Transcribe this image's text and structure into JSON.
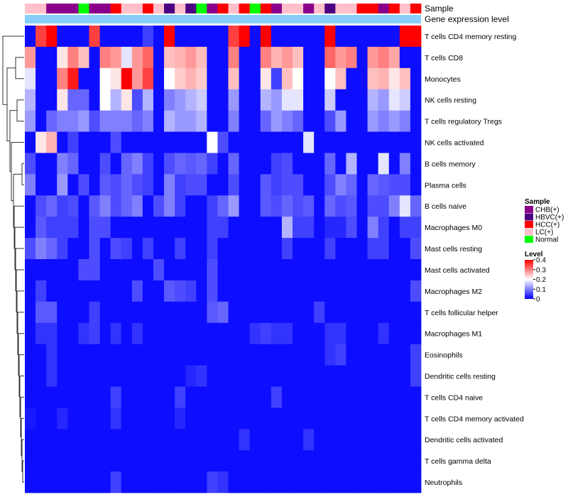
{
  "chart_data": {
    "type": "heatmap",
    "title": "",
    "annotations": [
      {
        "name": "Sample",
        "label": "Sample"
      },
      {
        "name": "Gene expression level",
        "label": "Gene expression level",
        "color": "#87CEFA"
      }
    ],
    "sample_colors": {
      "CHB(+)": "#8B008B",
      "HBVC(+)": "#4B0082",
      "HCC(+)": "#FF0000",
      "LC(+)": "#FFC0CB",
      "Normal": "#00FF00"
    },
    "columns_sample": [
      "LC(+)",
      "LC(+)",
      "CHB(+)",
      "CHB(+)",
      "CHB(+)",
      "Normal",
      "CHB(+)",
      "CHB(+)",
      "HCC(+)",
      "LC(+)",
      "LC(+)",
      "HCC(+)",
      "LC(+)",
      "HBVC(+)",
      "LC(+)",
      "HBVC(+)",
      "Normal",
      "CHB(+)",
      "HCC(+)",
      "LC(+)",
      "HCC(+)",
      "Normal",
      "HCC(+)",
      "CHB(+)",
      "LC(+)",
      "LC(+)",
      "CHB(+)",
      "LC(+)",
      "HBVC(+)",
      "LC(+)",
      "LC(+)",
      "HCC(+)",
      "HCC(+)",
      "CHB(+)",
      "HCC(+)",
      "LC(+)",
      "HCC(+)"
    ],
    "rows": [
      "T cells CD4 memory resting",
      "T cells CD8",
      "Monocytes",
      "NK cells resting",
      "T cells regulatory  Tregs",
      "NK cells activated",
      "B cells memory",
      "Plasma cells",
      "B cells naive",
      "Macrophages M0",
      "Mast cells resting",
      "Mast cells activated",
      "Macrophages M2",
      "T cells follicular helper",
      "Macrophages M1",
      "Eosinophils",
      "Dendritic cells resting",
      "T cells CD4 naive",
      "T cells CD4 memory activated",
      "Dendritic cells activated",
      "T cells gamma delta",
      "Neutrophils"
    ],
    "values": [
      [
        0.01,
        0.35,
        0.4,
        0.01,
        0.01,
        0.01,
        0.35,
        0.01,
        0.01,
        0.01,
        0.01,
        0.05,
        0.01,
        0.42,
        0.01,
        0.01,
        0.01,
        0.01,
        0.01,
        0.35,
        0.4,
        0.01,
        0.42,
        0.01,
        0.01,
        0.01,
        0.01,
        0.01,
        0.42,
        0.01,
        0.01,
        0.01,
        0.01,
        0.01,
        0.01,
        0.43,
        0.42
      ],
      [
        0.28,
        0.01,
        0.01,
        0.22,
        0.3,
        0.25,
        0.01,
        0.3,
        0.28,
        0.18,
        0.28,
        0.32,
        0.01,
        0.25,
        0.26,
        0.28,
        0.25,
        0.01,
        0.01,
        0.3,
        0.01,
        0.01,
        0.3,
        0.26,
        0.28,
        0.25,
        0.01,
        0.01,
        0.32,
        0.28,
        0.3,
        0.01,
        0.28,
        0.3,
        0.27,
        0.01,
        0.01
      ],
      [
        0.18,
        0.01,
        0.01,
        0.3,
        0.38,
        0.01,
        0.01,
        0.2,
        0.22,
        0.42,
        0.28,
        0.35,
        0.01,
        0.2,
        0.24,
        0.26,
        0.24,
        0.01,
        0.01,
        0.25,
        0.01,
        0.01,
        0.22,
        0.05,
        0.25,
        0.2,
        0.01,
        0.01,
        0.2,
        0.25,
        0.01,
        0.01,
        0.25,
        0.26,
        0.22,
        0.25,
        0.01
      ],
      [
        0.14,
        0.01,
        0.01,
        0.22,
        0.08,
        0.08,
        0.01,
        0.2,
        0.14,
        0.22,
        0.06,
        0.14,
        0.01,
        0.1,
        0.12,
        0.14,
        0.16,
        0.01,
        0.01,
        0.12,
        0.01,
        0.01,
        0.14,
        0.12,
        0.18,
        0.18,
        0.01,
        0.01,
        0.16,
        0.01,
        0.01,
        0.01,
        0.14,
        0.12,
        0.18,
        0.16,
        0.01
      ],
      [
        0.12,
        0.01,
        0.08,
        0.1,
        0.1,
        0.12,
        0.06,
        0.1,
        0.1,
        0.1,
        0.08,
        0.1,
        0.01,
        0.14,
        0.12,
        0.12,
        0.14,
        0.01,
        0.01,
        0.1,
        0.01,
        0.01,
        0.08,
        0.12,
        0.1,
        0.08,
        0.01,
        0.01,
        0.06,
        0.12,
        0.01,
        0.01,
        0.12,
        0.1,
        0.12,
        0.1,
        0.01
      ],
      [
        0.01,
        0.22,
        0.26,
        0.01,
        0.05,
        0.01,
        0.01,
        0.01,
        0.06,
        0.01,
        0.01,
        0.01,
        0.01,
        0.01,
        0.01,
        0.01,
        0.01,
        0.2,
        0.06,
        0.01,
        0.01,
        0.01,
        0.01,
        0.01,
        0.01,
        0.01,
        0.18,
        0.01,
        0.01,
        0.01,
        0.01,
        0.01,
        0.01,
        0.01,
        0.01,
        0.01,
        0.01
      ],
      [
        0.06,
        0.01,
        0.01,
        0.1,
        0.08,
        0.01,
        0.01,
        0.06,
        0.01,
        0.08,
        0.1,
        0.05,
        0.01,
        0.06,
        0.08,
        0.07,
        0.08,
        0.05,
        0.01,
        0.08,
        0.01,
        0.01,
        0.01,
        0.05,
        0.06,
        0.01,
        0.01,
        0.01,
        0.08,
        0.01,
        0.14,
        0.01,
        0.01,
        0.18,
        0.01,
        0.1,
        0.01
      ],
      [
        0.1,
        0.01,
        0.01,
        0.12,
        0.01,
        0.06,
        0.01,
        0.07,
        0.06,
        0.08,
        0.06,
        0.05,
        0.01,
        0.1,
        0.05,
        0.06,
        0.06,
        0.01,
        0.01,
        0.06,
        0.01,
        0.01,
        0.07,
        0.05,
        0.06,
        0.06,
        0.01,
        0.01,
        0.06,
        0.1,
        0.08,
        0.01,
        0.08,
        0.07,
        0.06,
        0.06,
        0.01
      ],
      [
        0.01,
        0.06,
        0.08,
        0.05,
        0.06,
        0.01,
        0.07,
        0.1,
        0.06,
        0.08,
        0.1,
        0.01,
        0.06,
        0.1,
        0.05,
        0.01,
        0.01,
        0.05,
        0.08,
        0.12,
        0.01,
        0.01,
        0.07,
        0.06,
        0.08,
        0.06,
        0.07,
        0.01,
        0.08,
        0.06,
        0.07,
        0.01,
        0.06,
        0.06,
        0.1,
        0.18,
        0.08
      ],
      [
        0.01,
        0.07,
        0.05,
        0.05,
        0.05,
        0.01,
        0.06,
        0.06,
        0.01,
        0.01,
        0.01,
        0.01,
        0.01,
        0.01,
        0.01,
        0.01,
        0.01,
        0.05,
        0.05,
        0.01,
        0.01,
        0.01,
        0.01,
        0.01,
        0.14,
        0.05,
        0.05,
        0.01,
        0.03,
        0.03,
        0.06,
        0.01,
        0.1,
        0.05,
        0.01,
        0.05,
        0.05
      ],
      [
        0.06,
        0.1,
        0.08,
        0.05,
        0.01,
        0.01,
        0.06,
        0.01,
        0.06,
        0.05,
        0.01,
        0.05,
        0.01,
        0.01,
        0.05,
        0.01,
        0.01,
        0.05,
        0.01,
        0.01,
        0.01,
        0.01,
        0.01,
        0.01,
        0.05,
        0.01,
        0.01,
        0.01,
        0.05,
        0.01,
        0.01,
        0.01,
        0.05,
        0.05,
        0.01,
        0.01,
        0.06
      ],
      [
        0.01,
        0.01,
        0.01,
        0.01,
        0.01,
        0.06,
        0.06,
        0.01,
        0.01,
        0.01,
        0.01,
        0.01,
        0.06,
        0.01,
        0.01,
        0.01,
        0.01,
        0.06,
        0.01,
        0.01,
        0.01,
        0.01,
        0.01,
        0.01,
        0.01,
        0.01,
        0.01,
        0.01,
        0.01,
        0.01,
        0.01,
        0.01,
        0.01,
        0.01,
        0.01,
        0.01,
        0.01
      ],
      [
        0.01,
        0.05,
        0.01,
        0.01,
        0.01,
        0.01,
        0.01,
        0.01,
        0.01,
        0.01,
        0.06,
        0.01,
        0.01,
        0.07,
        0.06,
        0.05,
        0.01,
        0.06,
        0.01,
        0.01,
        0.01,
        0.01,
        0.01,
        0.01,
        0.01,
        0.01,
        0.01,
        0.01,
        0.01,
        0.01,
        0.01,
        0.01,
        0.01,
        0.01,
        0.01,
        0.01,
        0.06
      ],
      [
        0.01,
        0.07,
        0.07,
        0.01,
        0.01,
        0.01,
        0.05,
        0.01,
        0.01,
        0.01,
        0.01,
        0.01,
        0.01,
        0.01,
        0.01,
        0.01,
        0.01,
        0.07,
        0.08,
        0.01,
        0.01,
        0.01,
        0.01,
        0.01,
        0.01,
        0.01,
        0.01,
        0.05,
        0.01,
        0.01,
        0.01,
        0.01,
        0.01,
        0.01,
        0.01,
        0.01,
        0.01
      ],
      [
        0.01,
        0.04,
        0.04,
        0.01,
        0.01,
        0.04,
        0.05,
        0.01,
        0.04,
        0.01,
        0.04,
        0.01,
        0.01,
        0.01,
        0.01,
        0.01,
        0.01,
        0.01,
        0.01,
        0.01,
        0.01,
        0.04,
        0.05,
        0.04,
        0.04,
        0.01,
        0.01,
        0.01,
        0.04,
        0.04,
        0.01,
        0.01,
        0.01,
        0.04,
        0.01,
        0.01,
        0.01
      ],
      [
        0.01,
        0.01,
        0.04,
        0.01,
        0.01,
        0.01,
        0.01,
        0.01,
        0.01,
        0.01,
        0.01,
        0.01,
        0.01,
        0.01,
        0.01,
        0.01,
        0.01,
        0.01,
        0.01,
        0.01,
        0.01,
        0.01,
        0.01,
        0.01,
        0.01,
        0.01,
        0.01,
        0.01,
        0.04,
        0.05,
        0.01,
        0.01,
        0.01,
        0.01,
        0.01,
        0.01,
        0.05
      ],
      [
        0.01,
        0.01,
        0.04,
        0.01,
        0.01,
        0.01,
        0.01,
        0.01,
        0.01,
        0.01,
        0.01,
        0.01,
        0.01,
        0.01,
        0.01,
        0.03,
        0.04,
        0.01,
        0.01,
        0.01,
        0.01,
        0.01,
        0.01,
        0.01,
        0.01,
        0.01,
        0.01,
        0.01,
        0.01,
        0.01,
        0.01,
        0.01,
        0.01,
        0.01,
        0.01,
        0.01,
        0.05
      ],
      [
        0.01,
        0.01,
        0.01,
        0.01,
        0.01,
        0.01,
        0.01,
        0.01,
        0.05,
        0.01,
        0.01,
        0.01,
        0.01,
        0.01,
        0.05,
        0.01,
        0.01,
        0.01,
        0.01,
        0.01,
        0.01,
        0.01,
        0.01,
        0.05,
        0.01,
        0.01,
        0.01,
        0.01,
        0.01,
        0.01,
        0.01,
        0.01,
        0.01,
        0.01,
        0.01,
        0.01,
        0.01
      ],
      [
        0.02,
        0.01,
        0.01,
        0.03,
        0.01,
        0.01,
        0.01,
        0.01,
        0.04,
        0.01,
        0.01,
        0.01,
        0.01,
        0.01,
        0.03,
        0.01,
        0.01,
        0.01,
        0.01,
        0.01,
        0.01,
        0.01,
        0.01,
        0.01,
        0.01,
        0.01,
        0.01,
        0.01,
        0.01,
        0.01,
        0.01,
        0.01,
        0.01,
        0.01,
        0.01,
        0.01,
        0.01
      ],
      [
        0.01,
        0.01,
        0.01,
        0.01,
        0.01,
        0.01,
        0.01,
        0.01,
        0.01,
        0.01,
        0.01,
        0.01,
        0.01,
        0.01,
        0.01,
        0.01,
        0.01,
        0.01,
        0.01,
        0.01,
        0.04,
        0.01,
        0.01,
        0.01,
        0.01,
        0.01,
        0.04,
        0.01,
        0.01,
        0.01,
        0.01,
        0.01,
        0.01,
        0.01,
        0.01,
        0.01,
        0.01
      ],
      [
        0.01,
        0.01,
        0.01,
        0.01,
        0.01,
        0.01,
        0.01,
        0.01,
        0.01,
        0.01,
        0.01,
        0.01,
        0.01,
        0.01,
        0.01,
        0.01,
        0.01,
        0.01,
        0.01,
        0.01,
        0.01,
        0.01,
        0.01,
        0.01,
        0.01,
        0.01,
        0.01,
        0.01,
        0.01,
        0.01,
        0.01,
        0.01,
        0.01,
        0.01,
        0.01,
        0.01,
        0.01
      ],
      [
        0.01,
        0.01,
        0.01,
        0.01,
        0.01,
        0.01,
        0.01,
        0.01,
        0.05,
        0.01,
        0.01,
        0.01,
        0.01,
        0.01,
        0.01,
        0.01,
        0.01,
        0.05,
        0.04,
        0.01,
        0.01,
        0.01,
        0.01,
        0.01,
        0.01,
        0.01,
        0.01,
        0.01,
        0.01,
        0.01,
        0.01,
        0.01,
        0.01,
        0.01,
        0.01,
        0.01,
        0.01
      ]
    ],
    "color_scale": {
      "min": 0,
      "mid": 0.2,
      "max": 0.4,
      "low": "#0000FF",
      "midColor": "#FFFFFF",
      "high": "#FF0000"
    },
    "legend_sample": {
      "title": "Sample",
      "entries": [
        "CHB(+)",
        "HBVC(+)",
        "HCC(+)",
        "LC(+)",
        "Normal"
      ]
    },
    "legend_level": {
      "title": "Level",
      "ticks": [
        "0.4",
        "0.3",
        "0.2",
        "0.1",
        "0"
      ],
      "tick_values": [
        0.4,
        0.3,
        0.2,
        0.1,
        0
      ]
    },
    "legend_placement": "right",
    "dendrogram": "rows"
  }
}
